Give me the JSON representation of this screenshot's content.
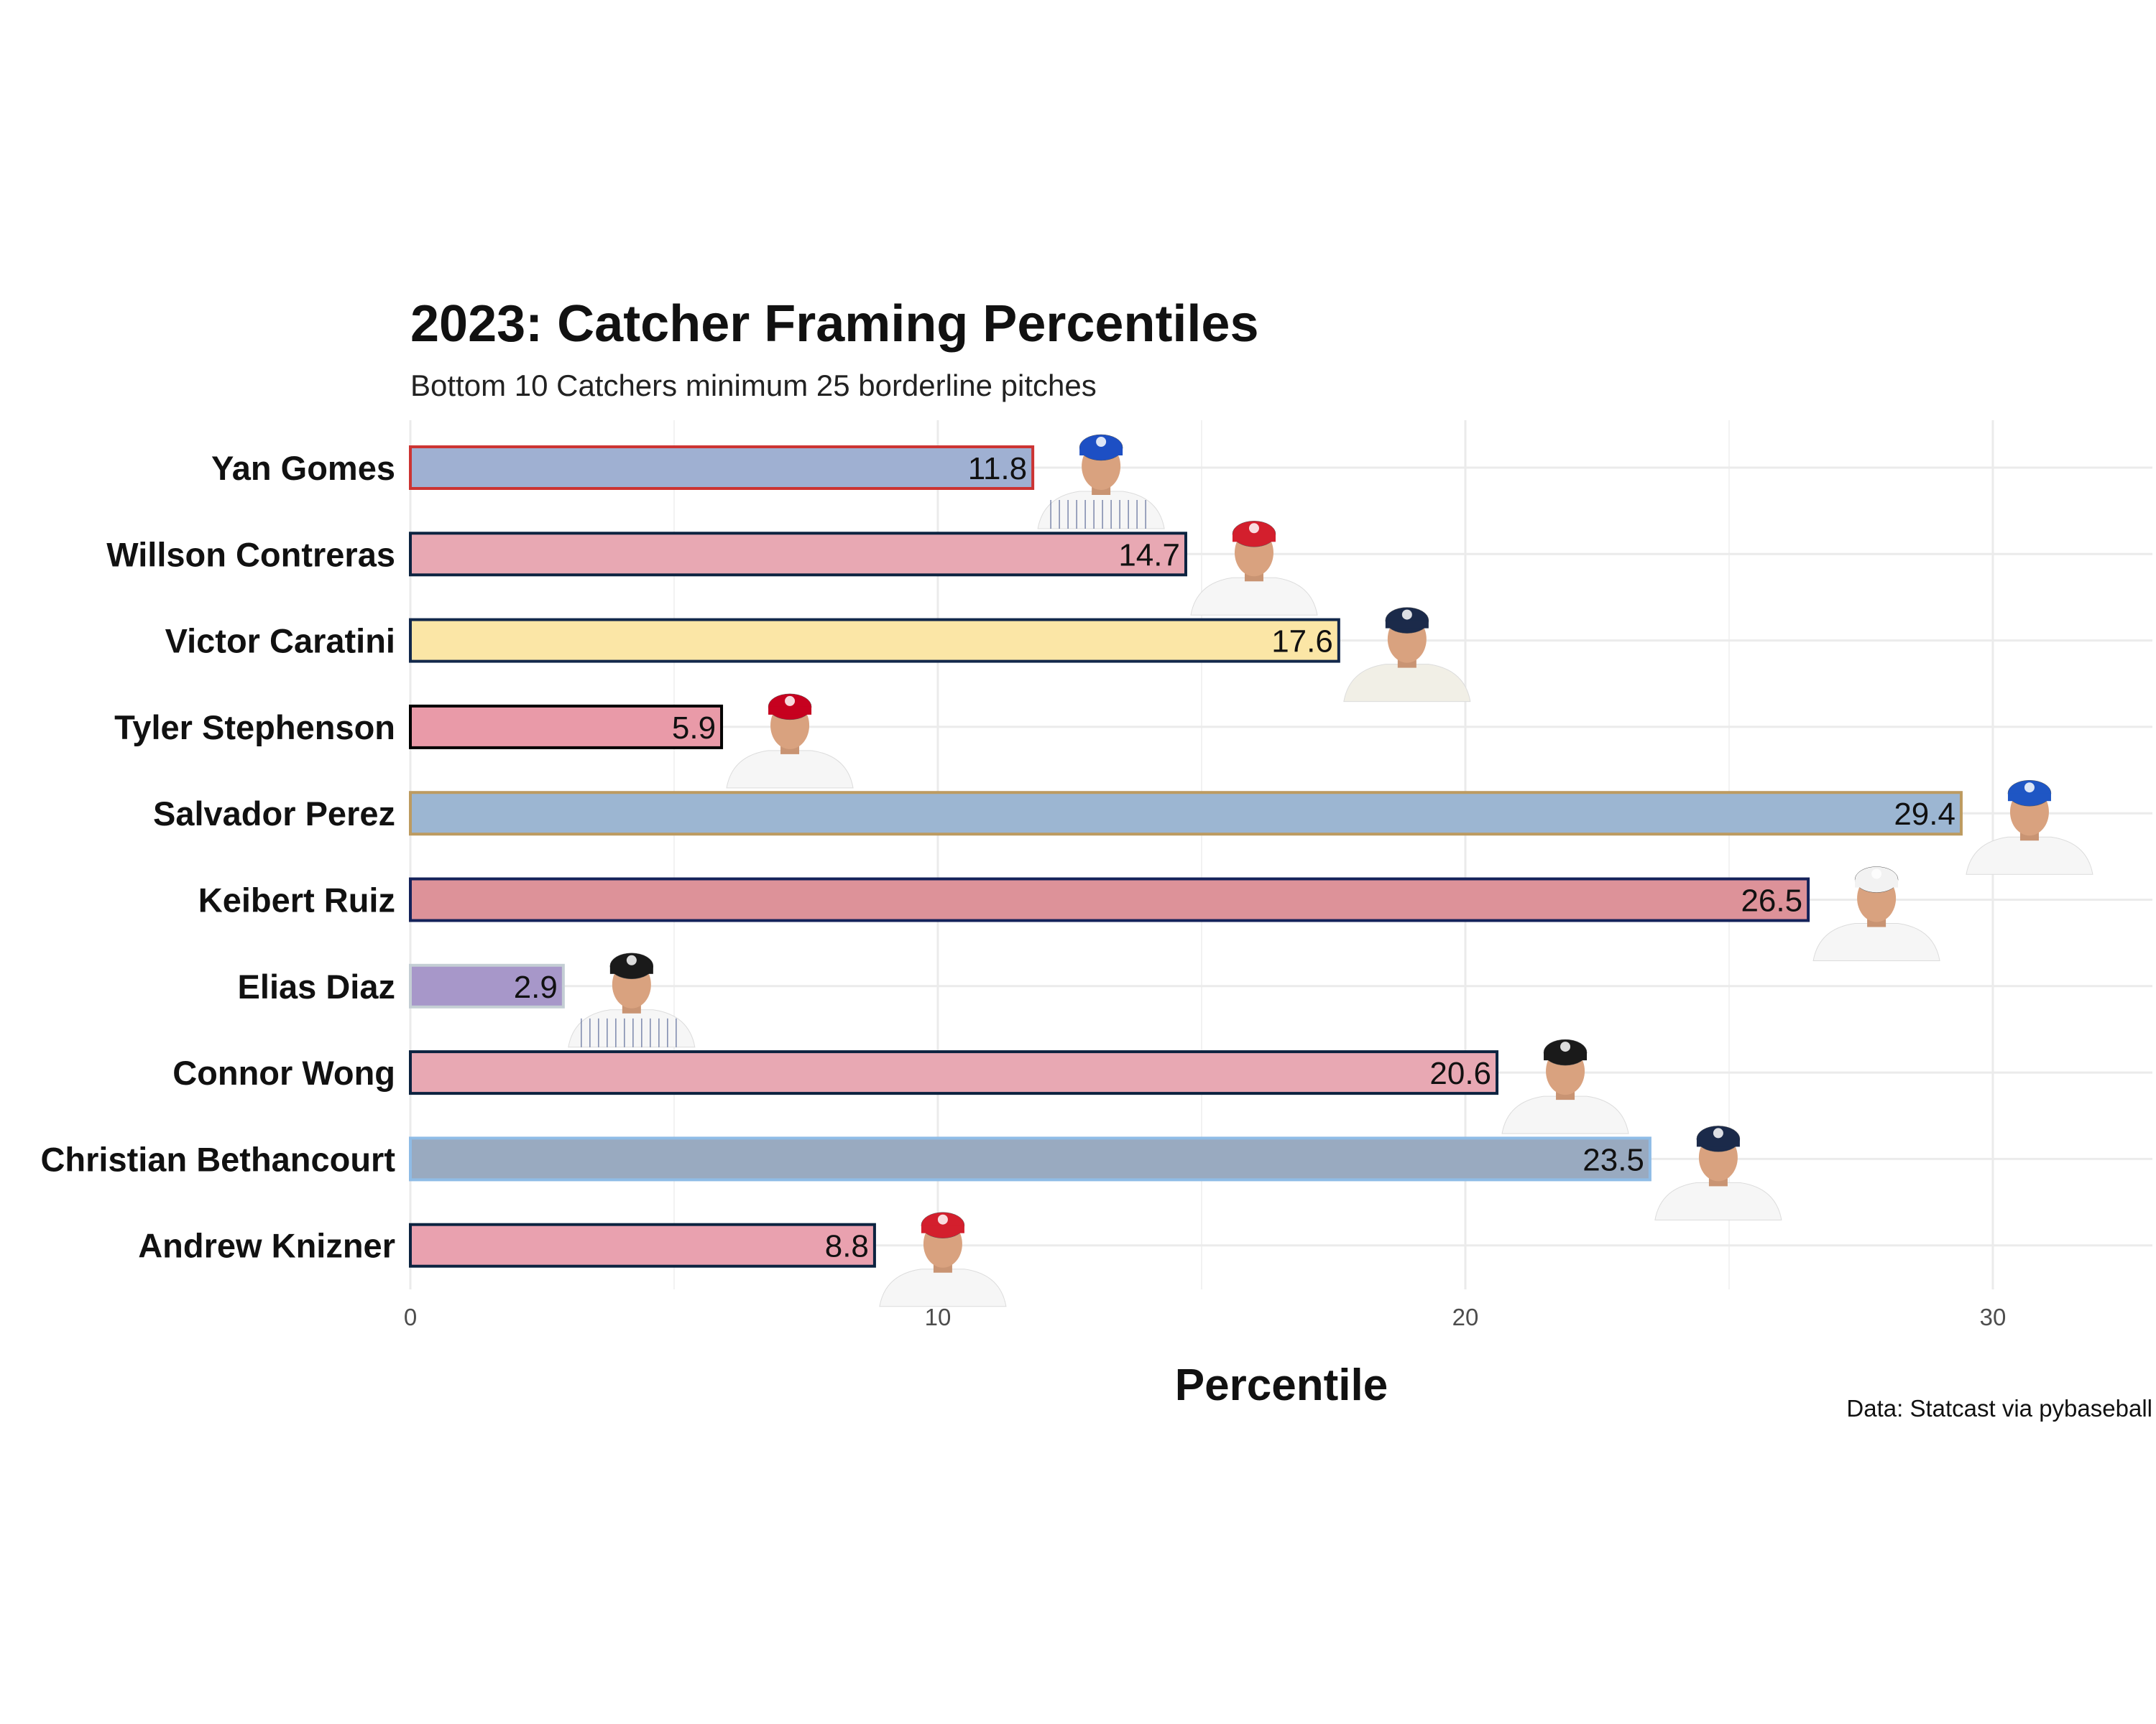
{
  "chart_data": {
    "type": "bar",
    "orientation": "horizontal",
    "title": "2023: Catcher Framing Percentiles",
    "subtitle": "Bottom 10 Catchers minimum 25 borderline pitches",
    "xlabel": "Percentile",
    "ylabel": "",
    "caption": "Data: Statcast via pybaseball",
    "xlim": [
      0,
      33
    ],
    "xticks": [
      "0",
      "10",
      "20",
      "30"
    ],
    "grid": true,
    "legend": "none",
    "categories": [
      "Yan Gomes",
      "Willson Contreras",
      "Victor Caratini",
      "Tyler Stephenson",
      "Salvador Perez",
      "Keibert Ruiz",
      "Elias Diaz",
      "Connor Wong",
      "Christian Bethancourt",
      "Andrew Knizner"
    ],
    "values": [
      11.8,
      14.7,
      17.6,
      5.9,
      29.4,
      26.5,
      2.9,
      20.6,
      23.5,
      8.8
    ],
    "labels": [
      "11.8",
      "14.7",
      "17.6",
      "5.9",
      "29.4",
      "26.5",
      "2.9",
      "20.6",
      "23.5",
      "8.8"
    ],
    "fill_colors": [
      "#9fb0d2",
      "#e8a8b3",
      "#fbe6a6",
      "#e99aa8",
      "#9cb6d2",
      "#dd9299",
      "#a797c9",
      "#e8a8b3",
      "#99aac0",
      "#e9a1af"
    ],
    "outline_colors": [
      "#cc3433",
      "#0c2340",
      "#12284b",
      "#000000",
      "#bd9b60",
      "#14225a",
      "#c4ced4",
      "#0c2340",
      "#8fbce6",
      "#0c2340"
    ],
    "headshot_icons": [
      "player-headshot-icon",
      "player-headshot-icon",
      "player-headshot-icon",
      "player-headshot-icon",
      "player-headshot-icon",
      "player-headshot-icon",
      "player-headshot-icon",
      "player-headshot-icon",
      "player-headshot-icon",
      "player-headshot-icon"
    ],
    "cap_colors": [
      "#1d4fc4",
      "#d31f2d",
      "#1b2a4a",
      "#c6011f",
      "#1f56c4",
      "#f2f2f2",
      "#1a1a1a",
      "#1a1a1a",
      "#1b2a4a",
      "#d31f2d"
    ],
    "jersey_styles": [
      "pinstripe",
      "white",
      "cream",
      "white",
      "white",
      "white",
      "pinstripe",
      "white",
      "white",
      "white"
    ]
  }
}
